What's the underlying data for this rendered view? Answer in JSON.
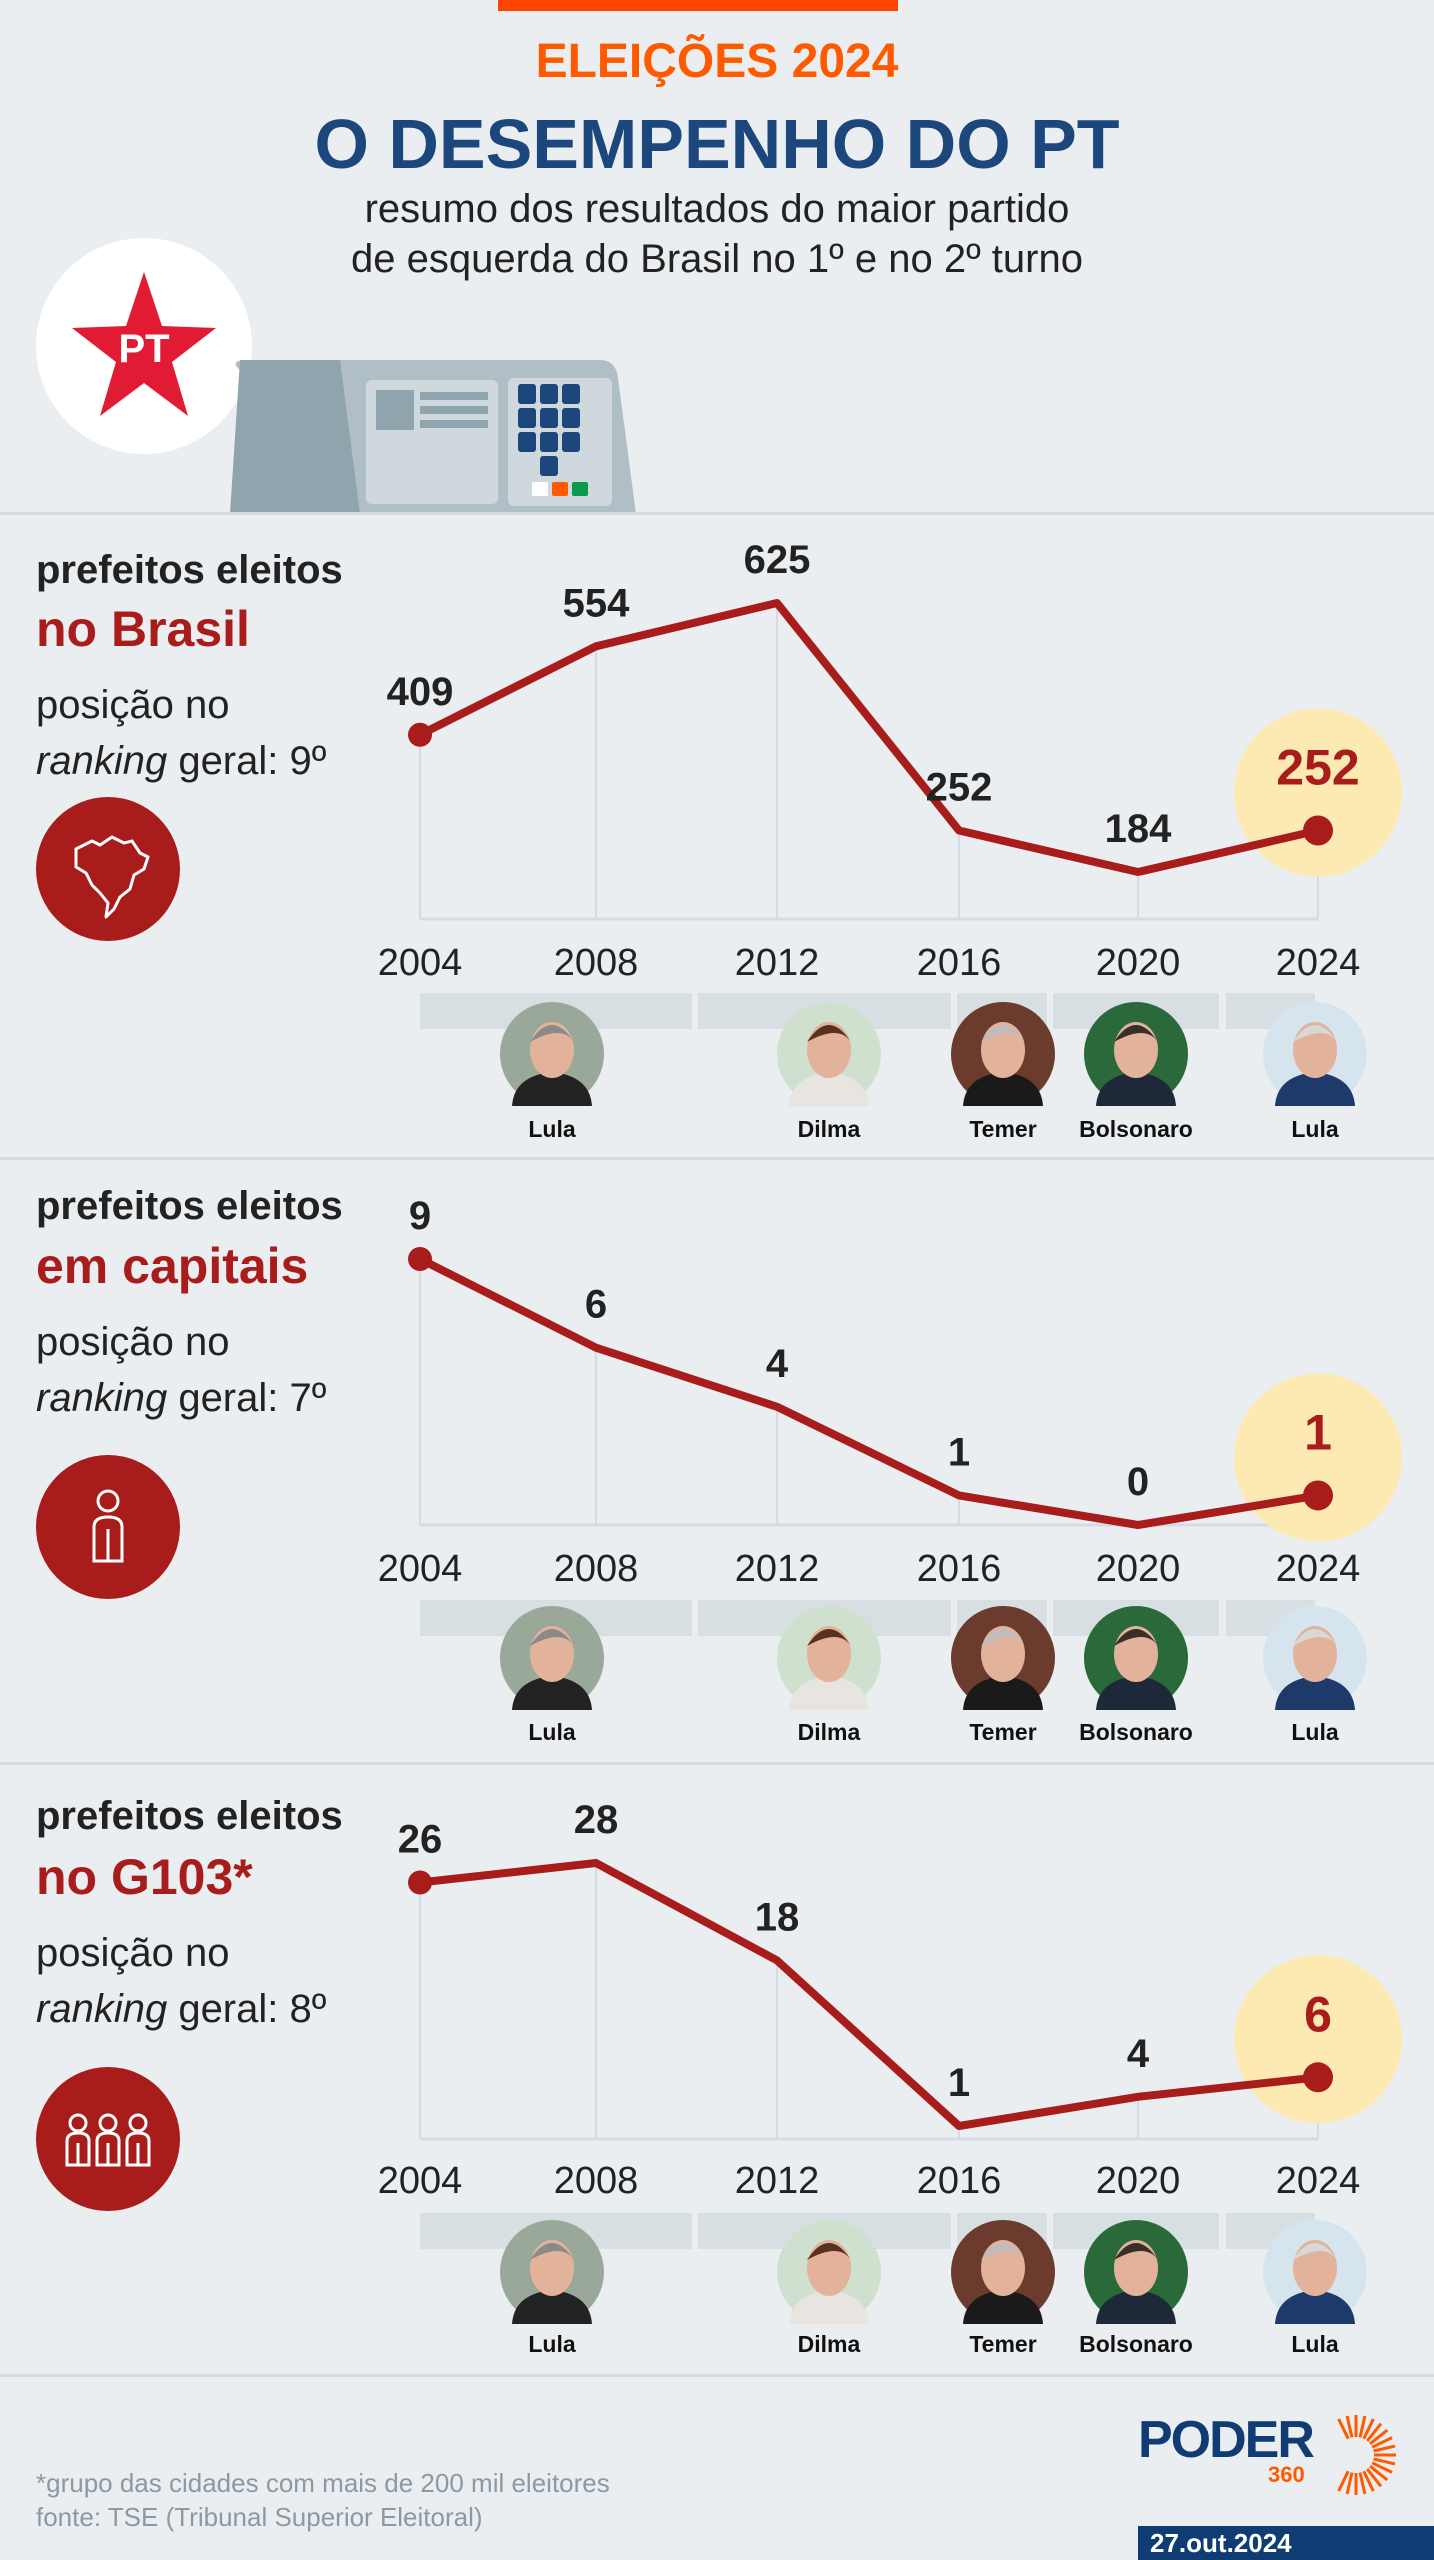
{
  "header": {
    "kicker": "ELEIÇÕES 2024",
    "title": "O DESEMPENHO DO PT",
    "subtitle_line1": "resumo dos resultados do maior partido",
    "subtitle_line2": "de esquerda do Brasil no 1º e no 2º turno",
    "party_logo_text": "PT"
  },
  "colors": {
    "accent_orange": "#ff5a00",
    "title_blue": "#1b477d",
    "line_red": "#a81c1c",
    "highlight_yellow": "#fde9b2",
    "background": "#ebeef1"
  },
  "sections": [
    {
      "line1": "prefeitos eleitos",
      "line2": "no Brasil",
      "pos_line1": "posição no",
      "ranking_word": "ranking",
      "ranking_rest": " geral: 9º",
      "icon": "brazil-map-icon"
    },
    {
      "line1": "prefeitos eleitos",
      "line2": "em capitais",
      "pos_line1": "posição no",
      "ranking_word": "ranking",
      "ranking_rest": " geral: 7º",
      "icon": "person-icon"
    },
    {
      "line1": "prefeitos eleitos",
      "line2": "no G103*",
      "pos_line1": "posição no",
      "ranking_word": "ranking",
      "ranking_rest": " geral: 8º",
      "icon": "people-icon"
    }
  ],
  "presidents": [
    "Lula",
    "Dilma",
    "Temer",
    "Bolsonaro",
    "Lula"
  ],
  "chart_data": [
    {
      "type": "line",
      "categories": [
        "2004",
        "2008",
        "2012",
        "2016",
        "2020",
        "2024"
      ],
      "values": [
        409,
        554,
        625,
        252,
        184,
        252
      ],
      "highlight": "2024",
      "grid": true
    },
    {
      "type": "line",
      "categories": [
        "2004",
        "2008",
        "2012",
        "2016",
        "2020",
        "2024"
      ],
      "values": [
        9,
        6,
        4,
        1,
        0,
        1
      ],
      "highlight": "2024",
      "grid": true
    },
    {
      "type": "line",
      "categories": [
        "2004",
        "2008",
        "2012",
        "2016",
        "2020",
        "2024"
      ],
      "values": [
        26,
        28,
        18,
        1,
        4,
        6
      ],
      "highlight": "2024",
      "grid": true
    }
  ],
  "footer": {
    "note": "*grupo das cidades com mais de 200 mil eleitores",
    "source": "fonte: TSE (Tribunal Superior Eleitoral)",
    "brand": "PODER",
    "brand_sub": "360",
    "date": "27.out.2024"
  }
}
